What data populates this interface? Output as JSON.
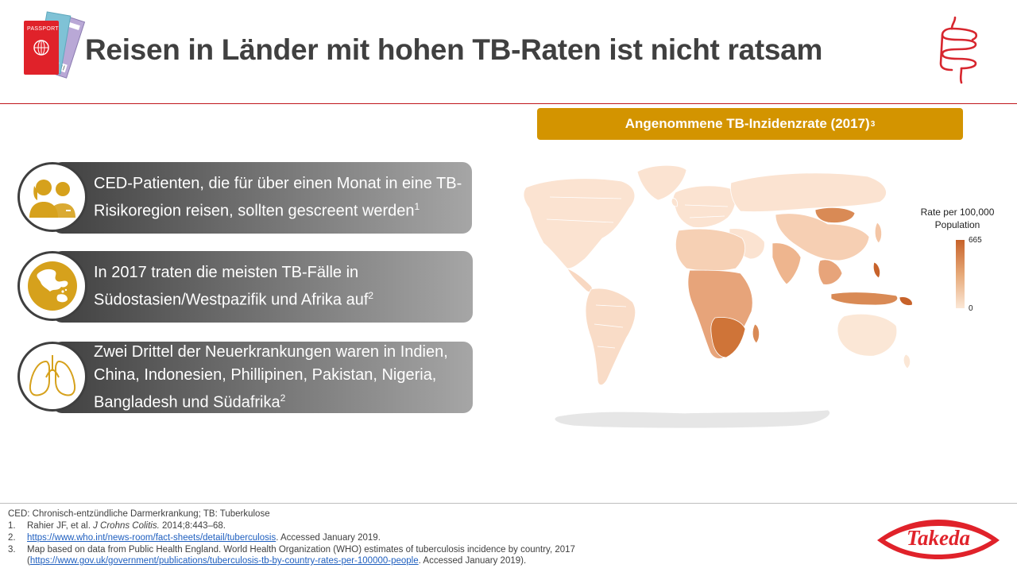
{
  "slide": {
    "title": "Reisen in Länder mit hohen TB-Raten ist nicht ratsam"
  },
  "passport": {
    "label": "PASSPORT"
  },
  "map": {
    "banner_title": "Angenommene TB-Inzidenzrate  (2017)",
    "banner_sup": "3",
    "legend": {
      "title_line1": "Rate per 100,000",
      "title_line2": "Population",
      "max": "665",
      "min": "0"
    }
  },
  "bullets": [
    {
      "icon": "people-icon",
      "text": "CED-Patienten, die für über einen Monat in eine TB-Risikoregion reisen, sollten gescreent werden",
      "sup": "1"
    },
    {
      "icon": "globe-icon",
      "text": "In 2017 traten die meisten TB-Fälle in Südostasien/Westpazifik und Afrika auf",
      "sup": "2"
    },
    {
      "icon": "lungs-icon",
      "text": "Zwei Drittel der Neuerkrankungen waren in Indien, China, Indonesien, Phillipinen, Pakistan, Nigeria, Bangladesh und Südafrika",
      "sup": "2"
    }
  ],
  "footnotes": {
    "abbrev": "CED: Chronisch-entzündliche  Darmerkrankung; TB: Tuberkulose",
    "ref1_num": "1.",
    "ref1_pre": "Rahier JF, et al. ",
    "ref1_journal": "J Crohns Colitis.",
    "ref1_post": " 2014;8:443–68.",
    "ref2_num": "2.",
    "ref2_link": "https://www.who.int/news-room/fact-sheets/detail/tuberculosis",
    "ref2_post": ".  Accessed January 2019.",
    "ref3_num": "3.",
    "ref3_line1": "Map based on data from Public Health England. World Health Organization (WHO) estimates of tuberculosis  incidence by country, 2017",
    "ref3_open": "(",
    "ref3_link": "https://www.gov.uk/government/publications/tuberculosis-tb-by-country-rates-per-100000-people",
    "ref3_post": ".  Accessed January 2019)."
  },
  "logo": {
    "text": "Takeda"
  },
  "colors": {
    "accent_red": "#c0161c",
    "banner_gold": "#d39400",
    "icon_gold": "#d6a11c",
    "map_base": "#fbe3d1",
    "map_high": "#c7622a"
  }
}
